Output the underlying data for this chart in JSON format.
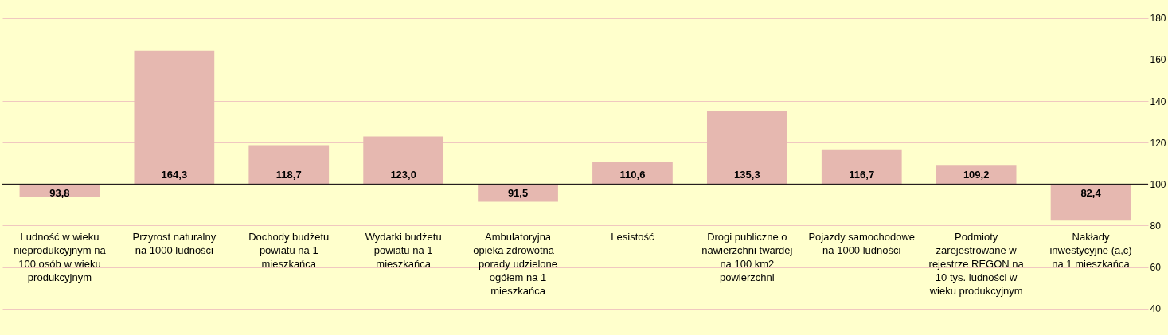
{
  "chart_data": {
    "type": "bar",
    "categories": [
      "Ludność w wieku nieprodukcyjnym na 100 osób w wieku produkcyjnym",
      "Przyrost naturalny na 1000 ludności",
      "Dochody budżetu powiatu na 1 mieszkańca",
      "Wydatki budżetu powiatu na 1 mieszkańca",
      "Ambulatoryjna opieka zdrowotna – porady udzielone ogółem na 1 mieszkańca",
      "Lesistość",
      "Drogi publiczne o nawierzchni twardej na 100 km2 powierzchni",
      "Pojazdy samochodowe na 1000 ludności",
      "Podmioty zarejestrowane w rejestrze REGON na 10 tys. ludności w wieku produkcyjnym",
      "Nakłady inwestycyjne (a,c) na 1 mieszkańca"
    ],
    "base": [
      100,
      100,
      100,
      100,
      100,
      100,
      100,
      100,
      100,
      100
    ],
    "values": [
      -6.2,
      64.3,
      18.7,
      23.0,
      -8.5,
      10.6,
      35.3,
      16.7,
      9.2,
      -17.6
    ],
    "value_labels": [
      "93,8",
      "164,3",
      "118,7",
      "123,0",
      "91,5",
      "110,6",
      "135,3",
      "116,7",
      "109,2",
      "82,4"
    ],
    "color": "#e6b8b0",
    "ylim": [
      28,
      188
    ],
    "yticks": [
      40,
      60,
      80,
      100,
      120,
      140,
      160,
      180
    ],
    "ref_lines": [
      {
        "axis": "y",
        "value": 100,
        "color": "#000000"
      }
    ],
    "grid": "y",
    "legend": false
  }
}
